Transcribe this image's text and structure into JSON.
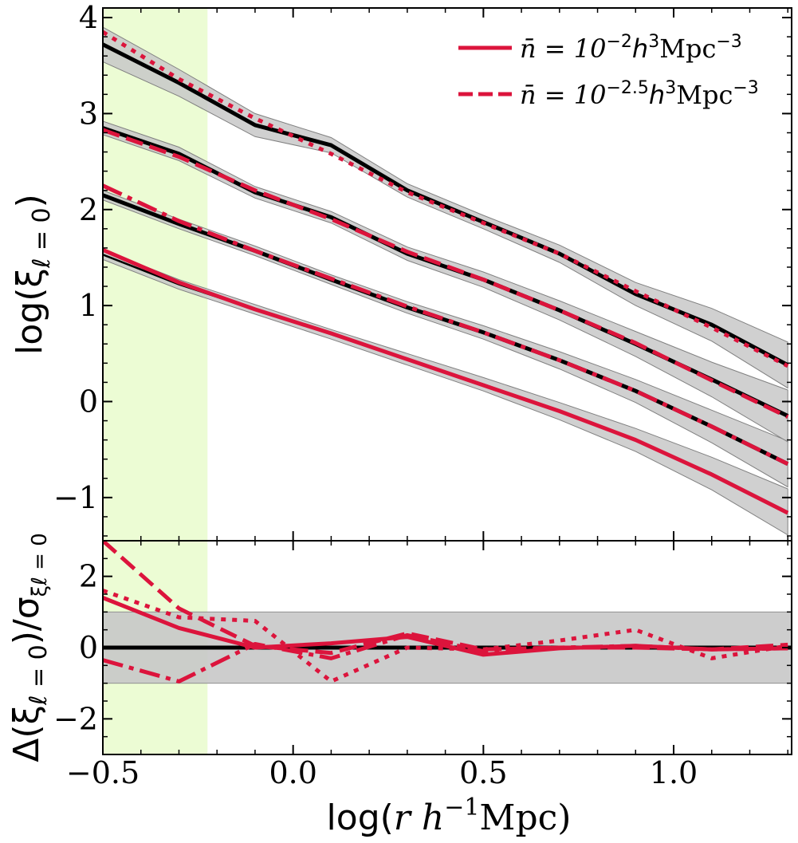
{
  "colors": {
    "mock": "#000000",
    "model": "#dc143c",
    "band": "#c8c8c8",
    "excluded_region": "#ecfcd4"
  },
  "chart_data": {
    "type": "line",
    "x": [
      -0.5,
      -0.3,
      -0.1,
      0.1,
      0.3,
      0.5,
      0.7,
      0.9,
      1.1,
      1.3
    ],
    "x_range": [
      -0.5,
      1.31
    ],
    "xticks": [
      "−0.5",
      "0.0",
      "0.5",
      "1.0"
    ],
    "xtick_values": [
      -0.5,
      0.0,
      0.5,
      1.0
    ],
    "excluded_x_range": [
      -0.5,
      -0.225
    ],
    "legend": {
      "placement": "top-right",
      "entries": [
        {
          "style": "solid",
          "prefix": "n̄ = 10",
          "exp": "−2",
          "h": "h",
          "h_exp": "3",
          "unit": "Mpc",
          "unit_exp": "−3"
        },
        {
          "style": "dashed",
          "prefix": "n̄ = 10",
          "exp": "−2.5",
          "h": "h",
          "h_exp": "3",
          "unit": "Mpc",
          "unit_exp": "−3"
        }
      ]
    },
    "top_panel": {
      "ylabel_main": "log(ξ",
      "ylabel_sub": "ℓ = 0",
      "ylabel_close": ")",
      "y_range": [
        -1.45,
        4.1
      ],
      "yticks": [
        "−1",
        "0",
        "1",
        "2",
        "3",
        "4"
      ],
      "ytick_values": [
        -1,
        0,
        1,
        2,
        3,
        4
      ],
      "series": [
        {
          "style": "solid",
          "mock": [
            1.53,
            1.22,
            0.96,
            0.7,
            0.44,
            0.18,
            -0.1,
            -0.4,
            -0.75,
            -1.15
          ],
          "band": [
            0.05,
            0.05,
            0.05,
            0.05,
            0.06,
            0.07,
            0.09,
            0.12,
            0.17,
            0.24
          ],
          "model": [
            1.58,
            1.24,
            0.96,
            0.71,
            0.44,
            0.17,
            -0.1,
            -0.4,
            -0.76,
            -1.16
          ]
        },
        {
          "style": "dash-dot",
          "mock": [
            2.15,
            1.85,
            1.57,
            1.27,
            0.98,
            0.72,
            0.43,
            0.11,
            -0.26,
            -0.65
          ],
          "band": [
            0.05,
            0.05,
            0.05,
            0.05,
            0.06,
            0.07,
            0.09,
            0.12,
            0.17,
            0.24
          ],
          "model": [
            2.25,
            1.88,
            1.57,
            1.28,
            0.99,
            0.72,
            0.43,
            0.11,
            -0.26,
            -0.65
          ]
        },
        {
          "style": "dashed",
          "mock": [
            2.85,
            2.58,
            2.18,
            1.92,
            1.54,
            1.27,
            0.95,
            0.6,
            0.23,
            -0.15
          ],
          "band": [
            0.07,
            0.07,
            0.06,
            0.06,
            0.07,
            0.08,
            0.1,
            0.13,
            0.18,
            0.27
          ],
          "model": [
            2.83,
            2.55,
            2.2,
            1.9,
            1.56,
            1.27,
            0.95,
            0.61,
            0.22,
            -0.16
          ]
        },
        {
          "style": "dotted",
          "mock": [
            3.72,
            3.32,
            2.88,
            2.67,
            2.2,
            1.87,
            1.54,
            1.12,
            0.8,
            0.38
          ],
          "band": [
            0.18,
            0.14,
            0.12,
            0.08,
            0.07,
            0.07,
            0.09,
            0.12,
            0.17,
            0.24
          ],
          "model": [
            3.85,
            3.36,
            2.95,
            2.58,
            2.18,
            1.86,
            1.54,
            1.15,
            0.77,
            0.37
          ]
        }
      ]
    },
    "bottom_panel": {
      "ylabel_main": "Δ(ξ",
      "ylabel_sub": "ℓ = 0",
      "ylabel_mid": ")/σ",
      "ylabel_sub2": "ξℓ = 0",
      "y_range": [
        -3,
        3
      ],
      "yticks": [
        "−2",
        "0",
        "2"
      ],
      "ytick_values": [
        -2,
        0,
        2
      ],
      "band": [
        -1,
        1
      ],
      "residuals": [
        {
          "style": "solid",
          "values": [
            1.4,
            0.55,
            0.0,
            0.12,
            0.3,
            -0.2,
            -0.02,
            0.05,
            -0.05,
            -0.02
          ]
        },
        {
          "style": "dashed",
          "values": [
            3.0,
            1.1,
            0.05,
            -0.15,
            0.4,
            -0.05,
            0.0,
            0.0,
            -0.05,
            0.08
          ]
        },
        {
          "style": "dash-dot",
          "values": [
            -0.35,
            -0.95,
            0.1,
            -0.3,
            0.35,
            -0.1,
            0.0,
            0.05,
            -0.05,
            -0.02
          ]
        },
        {
          "style": "dotted",
          "values": [
            1.6,
            0.85,
            0.75,
            -0.95,
            0.0,
            -0.05,
            0.2,
            0.5,
            -0.3,
            0.05
          ]
        }
      ]
    },
    "xlabel_pre": "log(",
    "xlabel_r": "r",
    "xlabel_h": "h",
    "xlabel_exp": "−1",
    "xlabel_unit": "Mpc)"
  }
}
